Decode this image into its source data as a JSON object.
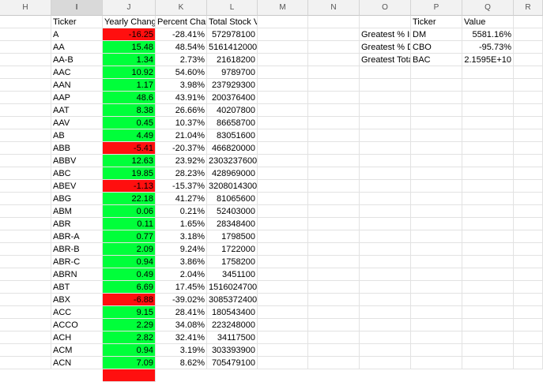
{
  "columns": [
    "H",
    "I",
    "J",
    "K",
    "L",
    "M",
    "N",
    "O",
    "P",
    "Q",
    "R"
  ],
  "selected_column": "I",
  "headers": {
    "ticker": "Ticker",
    "yearly_change": "Yearly Change",
    "percent_change": "Percent Change",
    "total_volume": "Total Stock Volume"
  },
  "rows": [
    {
      "ticker": "A",
      "change": "-16.25",
      "pct": "-28.41%",
      "vol": "572978100",
      "sign": "neg"
    },
    {
      "ticker": "AA",
      "change": "15.48",
      "pct": "48.54%",
      "vol": "5161412000",
      "sign": "pos"
    },
    {
      "ticker": "AA-B",
      "change": "1.34",
      "pct": "2.73%",
      "vol": "21618200",
      "sign": "pos"
    },
    {
      "ticker": "AAC",
      "change": "10.92",
      "pct": "54.60%",
      "vol": "9789700",
      "sign": "pos"
    },
    {
      "ticker": "AAN",
      "change": "1.17",
      "pct": "3.98%",
      "vol": "237929300",
      "sign": "pos"
    },
    {
      "ticker": "AAP",
      "change": "48.6",
      "pct": "43.91%",
      "vol": "200376400",
      "sign": "pos"
    },
    {
      "ticker": "AAT",
      "change": "8.38",
      "pct": "26.66%",
      "vol": "40207800",
      "sign": "pos"
    },
    {
      "ticker": "AAV",
      "change": "0.45",
      "pct": "10.37%",
      "vol": "86658700",
      "sign": "pos"
    },
    {
      "ticker": "AB",
      "change": "4.49",
      "pct": "21.04%",
      "vol": "83051600",
      "sign": "pos"
    },
    {
      "ticker": "ABB",
      "change": "-5.41",
      "pct": "-20.37%",
      "vol": "466820000",
      "sign": "neg"
    },
    {
      "ticker": "ABBV",
      "change": "12.63",
      "pct": "23.92%",
      "vol": "2303237600",
      "sign": "pos"
    },
    {
      "ticker": "ABC",
      "change": "19.85",
      "pct": "28.23%",
      "vol": "428969000",
      "sign": "pos"
    },
    {
      "ticker": "ABEV",
      "change": "-1.13",
      "pct": "-15.37%",
      "vol": "3208014300",
      "sign": "neg"
    },
    {
      "ticker": "ABG",
      "change": "22.18",
      "pct": "41.27%",
      "vol": "81065600",
      "sign": "pos"
    },
    {
      "ticker": "ABM",
      "change": "0.06",
      "pct": "0.21%",
      "vol": "52403000",
      "sign": "pos"
    },
    {
      "ticker": "ABR",
      "change": "0.11",
      "pct": "1.65%",
      "vol": "28348400",
      "sign": "pos"
    },
    {
      "ticker": "ABR-A",
      "change": "0.77",
      "pct": "3.18%",
      "vol": "1798500",
      "sign": "pos"
    },
    {
      "ticker": "ABR-B",
      "change": "2.09",
      "pct": "9.24%",
      "vol": "1722000",
      "sign": "pos"
    },
    {
      "ticker": "ABR-C",
      "change": "0.94",
      "pct": "3.86%",
      "vol": "1758200",
      "sign": "pos"
    },
    {
      "ticker": "ABRN",
      "change": "0.49",
      "pct": "2.04%",
      "vol": "3451100",
      "sign": "pos"
    },
    {
      "ticker": "ABT",
      "change": "6.69",
      "pct": "17.45%",
      "vol": "1516024700",
      "sign": "pos"
    },
    {
      "ticker": "ABX",
      "change": "-6.88",
      "pct": "-39.02%",
      "vol": "3085372400",
      "sign": "neg"
    },
    {
      "ticker": "ACC",
      "change": "9.15",
      "pct": "28.41%",
      "vol": "180543400",
      "sign": "pos"
    },
    {
      "ticker": "ACCO",
      "change": "2.29",
      "pct": "34.08%",
      "vol": "223248000",
      "sign": "pos"
    },
    {
      "ticker": "ACH",
      "change": "2.82",
      "pct": "32.41%",
      "vol": "34117500",
      "sign": "pos"
    },
    {
      "ticker": "ACM",
      "change": "0.94",
      "pct": "3.19%",
      "vol": "303393900",
      "sign": "pos"
    },
    {
      "ticker": "ACN",
      "change": "7.09",
      "pct": "8.62%",
      "vol": "705479100",
      "sign": "pos"
    }
  ],
  "summary": {
    "header_ticker": "Ticker",
    "header_value": "Value",
    "rows": [
      {
        "label": "Greatest % Increase",
        "ticker": "DM",
        "value": "5581.16%"
      },
      {
        "label": "Greatest % Decrease",
        "ticker": "CBO",
        "value": "-95.73%"
      },
      {
        "label": "Greatest Total Volume",
        "ticker": "BAC",
        "value": "2.1595E+10"
      }
    ]
  },
  "colors": {
    "positive": "#00ff3a",
    "negative": "#ff0f0f",
    "header_bg": "#f2f2f2",
    "selected_header_bg": "#d9d9d9"
  }
}
